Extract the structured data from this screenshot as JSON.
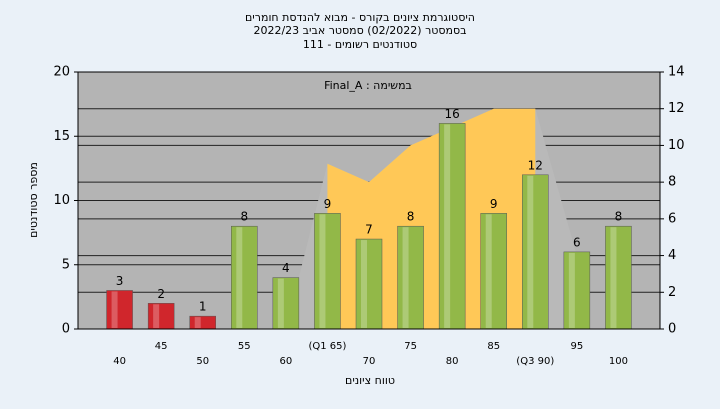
{
  "chart_data": {
    "type": "bar",
    "title": [
      "היסטוגרמת ציונים בקורס - מבוא להנדסת חומרים",
      "בסמסטר  (02/2022)  סמסטר אביב 2022/23",
      "סטודנטים רשומים - 111"
    ],
    "annotation": "במשימה : Final_A",
    "x_label": "טווח ציונים",
    "y_label": "מספר סטודנטים",
    "categories": [
      "40",
      "45",
      "50",
      "55",
      "60",
      "(Q1 65)",
      "70",
      "75",
      "80",
      "85",
      "(Q3 90)",
      "95",
      "100"
    ],
    "values": [
      3,
      2,
      1,
      8,
      4,
      9,
      7,
      8,
      16,
      9,
      12,
      6,
      8
    ],
    "colors": [
      "#d0262c",
      "#d0262c",
      "#d0262c",
      "#92b848",
      "#92b848",
      "#92b848",
      "#92b848",
      "#92b848",
      "#92b848",
      "#92b848",
      "#92b848",
      "#92b848",
      "#92b848"
    ],
    "areas": [
      {
        "axis": "y2",
        "color": "#b9b9b9",
        "values": [
          null,
          null,
          null,
          null,
          0,
          9,
          8,
          10,
          11,
          12,
          12,
          4,
          null
        ]
      },
      {
        "axis": "y2",
        "color": "#ffc857",
        "values": [
          null,
          null,
          null,
          null,
          null,
          9,
          8,
          10,
          11,
          12,
          12,
          null,
          null
        ]
      }
    ],
    "ylim": [
      0,
      20
    ],
    "yticks": [
      0,
      5,
      10,
      15,
      20
    ],
    "y2lim": [
      0,
      14
    ],
    "y2ticks": [
      0,
      2,
      4,
      6,
      8,
      10,
      12,
      14
    ],
    "grid": true
  }
}
